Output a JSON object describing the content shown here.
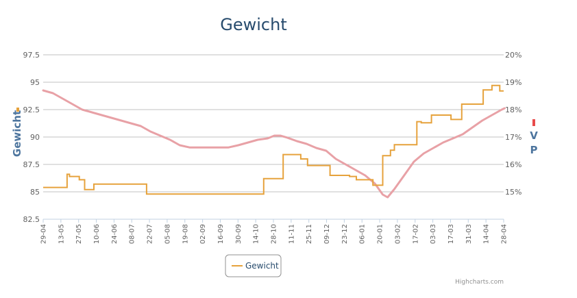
{
  "chart_data": {
    "type": "line",
    "title": "Gewicht",
    "credits": "Highcharts.com",
    "legend": {
      "placement": "bottom-center",
      "items": [
        "Gewicht"
      ]
    },
    "grid": true,
    "x_axis": {
      "type": "category",
      "labels": [
        "29-04",
        "13-05",
        "27-05",
        "10-06",
        "24-06",
        "08-07",
        "22-07",
        "05-08",
        "19-08",
        "02-09",
        "16-09",
        "30-09",
        "14-10",
        "28-10",
        "11-11",
        "25-11",
        "09-12",
        "23-12",
        "06-01",
        "20-01",
        "03-02",
        "17-02",
        "03-03",
        "17-03",
        "31-03",
        "14-04",
        "28-04"
      ]
    },
    "y_axis_left": {
      "title": "Gewicht",
      "ticks": [
        "82.5",
        "85",
        "87.5",
        "90",
        "92.5",
        "95",
        "97.5"
      ],
      "ylim": [
        82.5,
        97.5
      ]
    },
    "y_axis_right": {
      "title_letters": [
        "V",
        "P"
      ],
      "ticks": [
        "15%",
        "16%",
        "17%",
        "18%",
        "19%",
        "20%"
      ],
      "ylim": [
        14,
        20
      ]
    },
    "series": [
      {
        "name": "Gewicht",
        "color": "#e6a23c",
        "axis": "left",
        "step": true,
        "points": [
          [
            0,
            85.4
          ],
          [
            2.45,
            85.4
          ],
          [
            2.45,
            86.6
          ],
          [
            2.7,
            86.6
          ],
          [
            2.7,
            86.4
          ],
          [
            3.7,
            86.4
          ],
          [
            3.7,
            86.1
          ],
          [
            4.25,
            86.1
          ],
          [
            4.25,
            85.2
          ],
          [
            5.2,
            85.2
          ],
          [
            5.2,
            85.7
          ],
          [
            10.6,
            85.7
          ],
          [
            10.6,
            84.8
          ],
          [
            22.6,
            84.8
          ],
          [
            22.6,
            86.2
          ],
          [
            24.6,
            86.2
          ],
          [
            24.6,
            88.4
          ],
          [
            26.4,
            88.4
          ],
          [
            26.4,
            88
          ],
          [
            27.1,
            88
          ],
          [
            27.1,
            87.4
          ],
          [
            29.4,
            87.4
          ],
          [
            29.4,
            86.5
          ],
          [
            31.4,
            86.5
          ],
          [
            31.4,
            86.4
          ],
          [
            32.1,
            86.4
          ],
          [
            32.1,
            86.1
          ],
          [
            33.8,
            86.1
          ],
          [
            33.8,
            85.6
          ],
          [
            34.8,
            85.6
          ],
          [
            34.8,
            88.3
          ],
          [
            35.6,
            88.3
          ],
          [
            35.6,
            88.8
          ],
          [
            36,
            88.8
          ],
          [
            36,
            89.3
          ],
          [
            38.3,
            89.3
          ],
          [
            38.3,
            91.4
          ],
          [
            38.75,
            91.4
          ],
          [
            38.75,
            91.3
          ],
          [
            39.8,
            91.3
          ],
          [
            39.8,
            92
          ],
          [
            41.8,
            92
          ],
          [
            41.8,
            91.6
          ],
          [
            42.9,
            91.6
          ],
          [
            42.9,
            93
          ],
          [
            45.1,
            93
          ],
          [
            45.1,
            94.3
          ],
          [
            46,
            94.3
          ],
          [
            46,
            94.7
          ],
          [
            46.8,
            94.7
          ],
          [
            46.8,
            94.2
          ],
          [
            47.2,
            94.2
          ]
        ]
      },
      {
        "name": "",
        "color": "#e8a1a6",
        "axis": "right",
        "step": false,
        "points": [
          [
            0,
            18.7
          ],
          [
            1,
            18.6
          ],
          [
            2,
            18.4
          ],
          [
            3,
            18.2
          ],
          [
            4,
            18.0
          ],
          [
            5,
            17.9
          ],
          [
            6,
            17.8
          ],
          [
            7,
            17.7
          ],
          [
            8,
            17.6
          ],
          [
            9,
            17.5
          ],
          [
            10,
            17.4
          ],
          [
            11,
            17.2
          ],
          [
            12,
            17.05
          ],
          [
            13,
            16.9
          ],
          [
            14,
            16.7
          ],
          [
            15,
            16.62
          ],
          [
            16,
            16.62
          ],
          [
            17,
            16.62
          ],
          [
            18,
            16.62
          ],
          [
            19,
            16.62
          ],
          [
            20,
            16.7
          ],
          [
            21,
            16.8
          ],
          [
            22,
            16.9
          ],
          [
            23,
            16.95
          ],
          [
            23.7,
            17.05
          ],
          [
            24.3,
            17.05
          ],
          [
            25,
            16.98
          ],
          [
            26,
            16.85
          ],
          [
            27,
            16.75
          ],
          [
            28,
            16.6
          ],
          [
            29,
            16.5
          ],
          [
            30,
            16.2
          ],
          [
            31,
            16
          ],
          [
            32,
            15.8
          ],
          [
            33,
            15.6
          ],
          [
            34,
            15.3
          ],
          [
            34.8,
            14.9
          ],
          [
            35.3,
            14.8
          ],
          [
            36,
            15.1
          ],
          [
            37,
            15.6
          ],
          [
            38,
            16.1
          ],
          [
            39,
            16.4
          ],
          [
            40,
            16.6
          ],
          [
            41,
            16.8
          ],
          [
            42,
            16.95
          ],
          [
            43,
            17.1
          ],
          [
            44,
            17.35
          ],
          [
            45,
            17.6
          ],
          [
            46,
            17.8
          ],
          [
            47,
            18.0
          ],
          [
            47.3,
            18.05
          ]
        ]
      }
    ]
  }
}
